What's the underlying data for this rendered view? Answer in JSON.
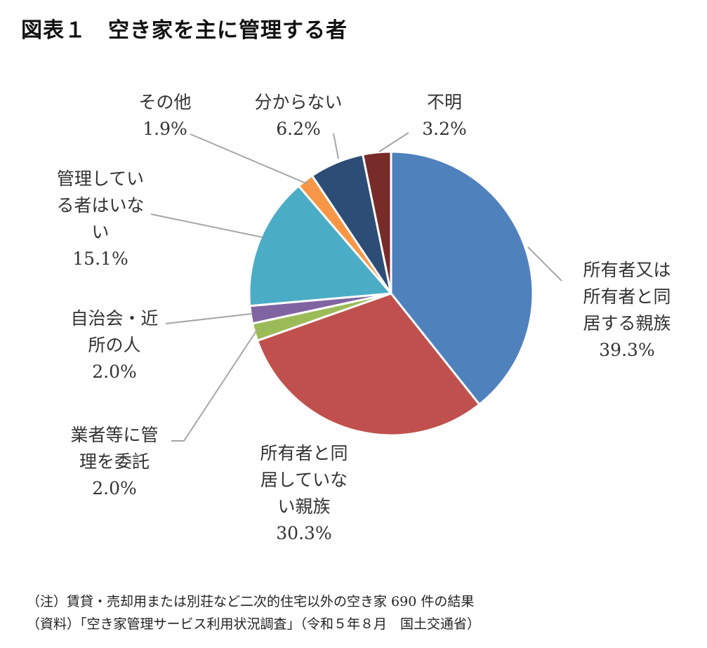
{
  "title": "図表１　空き家を主に管理する者",
  "chart_data": {
    "type": "pie",
    "start_angle_deg": 0,
    "direction": "clockwise",
    "slices": [
      {
        "name_lines": [
          "所有者又は",
          "所有者と同",
          "居する親族"
        ],
        "value": 39.3,
        "pct_label": "39.3%",
        "color": "#4f81bd"
      },
      {
        "name_lines": [
          "所有者と同",
          "居していな",
          "い親族"
        ],
        "value": 30.3,
        "pct_label": "30.3%",
        "color": "#c0504d"
      },
      {
        "name_lines": [
          "業者等に管",
          "理を委託"
        ],
        "value": 2.0,
        "pct_label": "2.0%",
        "color": "#9bbb59"
      },
      {
        "name_lines": [
          "自治会・近",
          "所の人"
        ],
        "value": 2.0,
        "pct_label": "2.0%",
        "color": "#8064a2"
      },
      {
        "name_lines": [
          "管理してい",
          "る者はいな",
          "い"
        ],
        "value": 15.1,
        "pct_label": "15.1%",
        "color": "#4bacc6"
      },
      {
        "name_lines": [
          "その他"
        ],
        "value": 1.9,
        "pct_label": "1.9%",
        "color": "#f79646"
      },
      {
        "name_lines": [
          "分からない"
        ],
        "value": 6.2,
        "pct_label": "6.2%",
        "color": "#2c4d75"
      },
      {
        "name_lines": [
          "不明"
        ],
        "value": 3.2,
        "pct_label": "3.2%",
        "color": "#772c2a"
      }
    ]
  },
  "notes": {
    "note1": "（注）賃貸・売却用または別荘など二次的住宅以外の空き家 690 件の結果",
    "note2": "（資料）「空き家管理サービス利用状況調査」（令和５年８月　国土交通省）"
  }
}
